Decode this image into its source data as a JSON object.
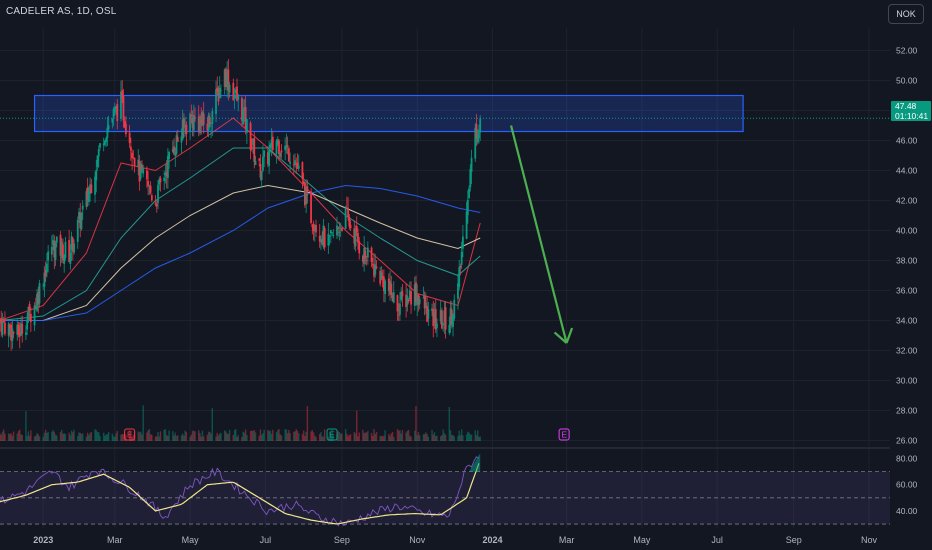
{
  "header": {
    "symbol_title": "CADELER AS, 1D, OSL",
    "currency_button": "NOK"
  },
  "last_price": {
    "value": "47.48",
    "countdown": "01:10:41"
  },
  "colors": {
    "background": "#131722",
    "grid": "#1e222d",
    "up": "#089981",
    "down": "#f23645",
    "zone": "#2962ff",
    "arrow": "#4caf50",
    "ma_red": "#f23645",
    "ma_teal": "#26a69a",
    "ma_tan": "#e8d5b0",
    "ma_blue": "#2962ff",
    "rsi": "#7e57c2",
    "rsi_ma": "#f0e68c"
  },
  "event_markers": [
    {
      "label": "E",
      "x": "2023-03-13",
      "color": "#f23645"
    },
    {
      "label": "E",
      "x": "2023-08-24",
      "color": "#089981"
    },
    {
      "label": "E",
      "x": "2024-02-28",
      "color": "#e040fb"
    }
  ],
  "chart_data": [
    {
      "type": "candlestick",
      "title": "",
      "x_axis": {
        "type": "date",
        "range": [
          "2022-11-28",
          "2024-11-18"
        ],
        "tick_labels": [
          {
            "label": "2023",
            "x": "2023-01-02"
          },
          {
            "label": "Mar",
            "x": "2023-03-01"
          },
          {
            "label": "May",
            "x": "2023-05-01"
          },
          {
            "label": "Jul",
            "x": "2023-07-01"
          },
          {
            "label": "Sep",
            "x": "2023-09-01"
          },
          {
            "label": "Nov",
            "x": "2023-11-01"
          },
          {
            "label": "2024",
            "x": "2024-01-01"
          },
          {
            "label": "Mar",
            "x": "2024-03-01"
          },
          {
            "label": "May",
            "x": "2024-05-01"
          },
          {
            "label": "Jul",
            "x": "2024-07-01"
          },
          {
            "label": "Sep",
            "x": "2024-09-01"
          },
          {
            "label": "Nov",
            "x": "2024-11-01"
          }
        ]
      },
      "y_axis": {
        "range": [
          25.5,
          53.5
        ],
        "tick_labels": [
          "52.00",
          "50.00",
          "48.00",
          "46.00",
          "44.00",
          "42.00",
          "40.00",
          "38.00",
          "36.00",
          "34.00",
          "32.00",
          "30.00",
          "28.00",
          "26.00"
        ]
      },
      "price_path": [
        [
          "2022-11-28",
          34.0
        ],
        [
          "2022-12-12",
          33.0
        ],
        [
          "2022-12-26",
          35.0
        ],
        [
          "2023-01-09",
          39.0
        ],
        [
          "2023-01-23",
          38.5
        ],
        [
          "2023-02-06",
          42.0
        ],
        [
          "2023-02-20",
          46.5
        ],
        [
          "2023-03-06",
          48.5
        ],
        [
          "2023-03-20",
          44.0
        ],
        [
          "2023-04-03",
          42.0
        ],
        [
          "2023-04-17",
          45.5
        ],
        [
          "2023-05-01",
          47.5
        ],
        [
          "2023-05-15",
          47.0
        ],
        [
          "2023-05-29",
          50.5
        ],
        [
          "2023-06-12",
          48.0
        ],
        [
          "2023-06-26",
          44.0
        ],
        [
          "2023-07-10",
          46.0
        ],
        [
          "2023-07-24",
          45.0
        ],
        [
          "2023-08-07",
          41.0
        ],
        [
          "2023-08-21",
          39.0
        ],
        [
          "2023-09-04",
          41.0
        ],
        [
          "2023-09-18",
          38.5
        ],
        [
          "2023-10-02",
          37.0
        ],
        [
          "2023-10-16",
          35.0
        ],
        [
          "2023-10-30",
          36.0
        ],
        [
          "2023-11-13",
          34.0
        ],
        [
          "2023-11-27",
          34.0
        ],
        [
          "2023-12-04",
          36.0
        ],
        [
          "2023-12-11",
          42.0
        ],
        [
          "2023-12-18",
          46.5
        ],
        [
          "2023-12-22",
          47.48
        ]
      ],
      "moving_averages": [
        {
          "color": "#f23645",
          "values": [
            [
              "2022-11-28",
              34.0
            ],
            [
              "2023-01-02",
              35.0
            ],
            [
              "2023-02-06",
              38.5
            ],
            [
              "2023-03-06",
              44.5
            ],
            [
              "2023-04-03",
              44.0
            ],
            [
              "2023-05-01",
              45.5
            ],
            [
              "2023-06-05",
              47.5
            ],
            [
              "2023-07-03",
              45.5
            ],
            [
              "2023-08-07",
              42.5
            ],
            [
              "2023-09-04",
              40.0
            ],
            [
              "2023-10-02",
              38.0
            ],
            [
              "2023-11-01",
              35.8
            ],
            [
              "2023-12-04",
              35.0
            ],
            [
              "2023-12-22",
              40.5
            ]
          ]
        },
        {
          "color": "#26a69a",
          "values": [
            [
              "2022-11-28",
              34.0
            ],
            [
              "2023-01-02",
              34.3
            ],
            [
              "2023-02-06",
              36.0
            ],
            [
              "2023-03-06",
              39.5
            ],
            [
              "2023-04-03",
              42.0
            ],
            [
              "2023-05-01",
              43.5
            ],
            [
              "2023-06-05",
              45.5
            ],
            [
              "2023-07-03",
              45.5
            ],
            [
              "2023-08-07",
              43.0
            ],
            [
              "2023-09-04",
              41.0
            ],
            [
              "2023-10-02",
              39.5
            ],
            [
              "2023-11-01",
              38.0
            ],
            [
              "2023-12-04",
              37.0
            ],
            [
              "2023-12-22",
              38.3
            ]
          ]
        },
        {
          "color": "#e8d5b0",
          "values": [
            [
              "2022-11-28",
              34.0
            ],
            [
              "2023-01-02",
              34.0
            ],
            [
              "2023-02-06",
              35.0
            ],
            [
              "2023-03-06",
              37.5
            ],
            [
              "2023-04-03",
              39.5
            ],
            [
              "2023-05-01",
              41.0
            ],
            [
              "2023-06-05",
              42.5
            ],
            [
              "2023-07-03",
              43.0
            ],
            [
              "2023-08-07",
              42.5
            ],
            [
              "2023-09-04",
              41.5
            ],
            [
              "2023-10-02",
              40.5
            ],
            [
              "2023-11-01",
              39.5
            ],
            [
              "2023-12-04",
              38.8
            ],
            [
              "2023-12-22",
              39.5
            ]
          ]
        },
        {
          "color": "#2962ff",
          "values": [
            [
              "2022-11-28",
              34.0
            ],
            [
              "2023-01-02",
              34.0
            ],
            [
              "2023-02-06",
              34.5
            ],
            [
              "2023-03-06",
              36.0
            ],
            [
              "2023-04-03",
              37.5
            ],
            [
              "2023-05-01",
              38.5
            ],
            [
              "2023-06-05",
              40.0
            ],
            [
              "2023-07-03",
              41.5
            ],
            [
              "2023-08-07",
              42.5
            ],
            [
              "2023-09-04",
              43.0
            ],
            [
              "2023-10-02",
              42.8
            ],
            [
              "2023-11-01",
              42.3
            ],
            [
              "2023-12-04",
              41.5
            ],
            [
              "2023-12-22",
              41.2
            ]
          ]
        }
      ],
      "resistance_zone": {
        "x_range": [
          "2022-12-26",
          "2024-07-22"
        ],
        "y_range": [
          46.6,
          49.0
        ]
      },
      "projection_arrow": {
        "from": [
          "2024-01-16",
          47.0
        ],
        "to": [
          "2024-03-01",
          32.5
        ]
      },
      "last_price_line": 47.48
    },
    {
      "type": "line",
      "title": "",
      "y_axis": {
        "range": [
          27,
          88
        ],
        "tick_labels": [
          "80.00",
          "60.00",
          "40.00"
        ],
        "band": [
          30,
          70
        ],
        "midline": 50
      },
      "series": [
        {
          "color": "#7e57c2",
          "values": [
            [
              "2022-11-28",
              47
            ],
            [
              "2022-12-19",
              55
            ],
            [
              "2023-01-09",
              70
            ],
            [
              "2023-01-23",
              58
            ],
            [
              "2023-02-13",
              72
            ],
            [
              "2023-03-06",
              62
            ],
            [
              "2023-03-27",
              48
            ],
            [
              "2023-04-10",
              35
            ],
            [
              "2023-05-01",
              60
            ],
            [
              "2023-05-22",
              70
            ],
            [
              "2023-06-12",
              55
            ],
            [
              "2023-07-03",
              40
            ],
            [
              "2023-07-24",
              45
            ],
            [
              "2023-08-14",
              35
            ],
            [
              "2023-09-04",
              30
            ],
            [
              "2023-09-25",
              38
            ],
            [
              "2023-10-16",
              44
            ],
            [
              "2023-11-06",
              38
            ],
            [
              "2023-11-27",
              36
            ],
            [
              "2023-12-11",
              72
            ],
            [
              "2023-12-22",
              84
            ]
          ]
        },
        {
          "color": "#f0e68c",
          "values": [
            [
              "2022-11-28",
              47
            ],
            [
              "2022-12-19",
              52
            ],
            [
              "2023-01-09",
              60
            ],
            [
              "2023-01-30",
              62
            ],
            [
              "2023-02-20",
              68
            ],
            [
              "2023-03-13",
              58
            ],
            [
              "2023-04-03",
              40
            ],
            [
              "2023-04-24",
              45
            ],
            [
              "2023-05-15",
              60
            ],
            [
              "2023-06-05",
              62
            ],
            [
              "2023-06-26",
              50
            ],
            [
              "2023-07-17",
              38
            ],
            [
              "2023-08-07",
              33
            ],
            [
              "2023-08-28",
              30
            ],
            [
              "2023-09-18",
              34
            ],
            [
              "2023-10-09",
              37
            ],
            [
              "2023-10-30",
              38
            ],
            [
              "2023-11-20",
              37
            ],
            [
              "2023-12-11",
              50
            ],
            [
              "2023-12-22",
              79
            ]
          ]
        }
      ]
    }
  ]
}
